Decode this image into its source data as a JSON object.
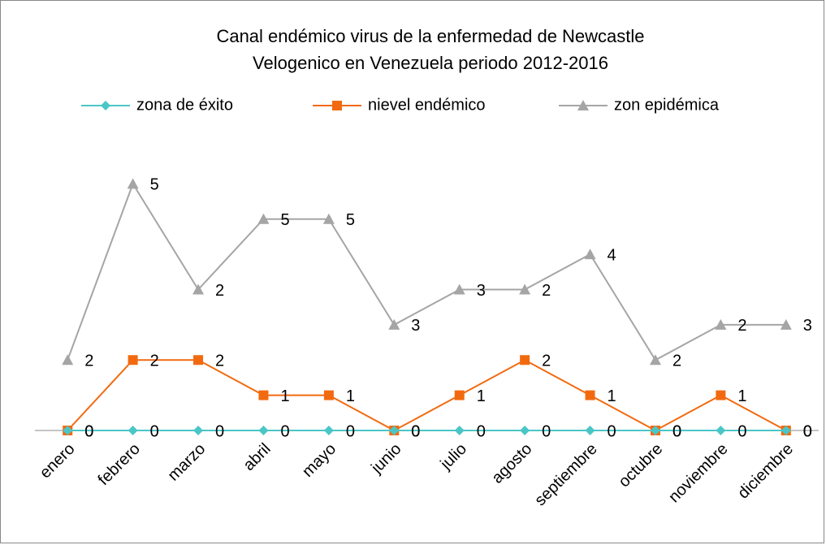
{
  "chart_data": {
    "type": "line",
    "stacked": true,
    "title": [
      "Canal endémico virus de la enfermedad de Newcastle",
      "Velogenico en Venezuela periodo 2012-2016"
    ],
    "categories": [
      "enero",
      "febrero",
      "marzo",
      "abril",
      "mayo",
      "junio",
      "julio",
      "agosto",
      "septiembre",
      "octubre",
      "noviembre",
      "diciembre"
    ],
    "series": [
      {
        "name": "zona de éxito",
        "color": "#4bc6c6",
        "marker": "diamond",
        "values": [
          0,
          0,
          0,
          0,
          0,
          0,
          0,
          0,
          0,
          0,
          0,
          0
        ]
      },
      {
        "name": "nievel endémico",
        "color": "#f26a10",
        "marker": "square",
        "values": [
          0,
          2,
          2,
          1,
          1,
          0,
          1,
          2,
          1,
          0,
          1,
          0
        ]
      },
      {
        "name": "zon epidémica",
        "color": "#a5a5a5",
        "marker": "triangle",
        "values": [
          2,
          5,
          2,
          5,
          5,
          3,
          3,
          2,
          4,
          2,
          2,
          3
        ]
      }
    ],
    "ylim": [
      0,
      8
    ],
    "legend": "top"
  }
}
